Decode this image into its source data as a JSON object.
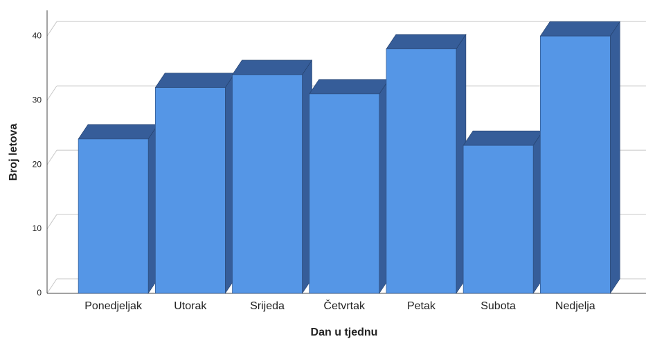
{
  "chart_data": {
    "type": "bar3d",
    "categories": [
      "Ponedjeljak",
      "Utorak",
      "Srijeda",
      "Četvrtak",
      "Petak",
      "Subota",
      "Nedjelja"
    ],
    "values": [
      24,
      32,
      34,
      31,
      38,
      23,
      40
    ],
    "color": "#5596e6",
    "side_color": "#365d99",
    "xlabel": "Dan u tjednu",
    "ylabel": "Broj letova",
    "ylim": [
      0,
      44
    ],
    "yticks": [
      0,
      10,
      20,
      30,
      40
    ],
    "grid": true
  }
}
